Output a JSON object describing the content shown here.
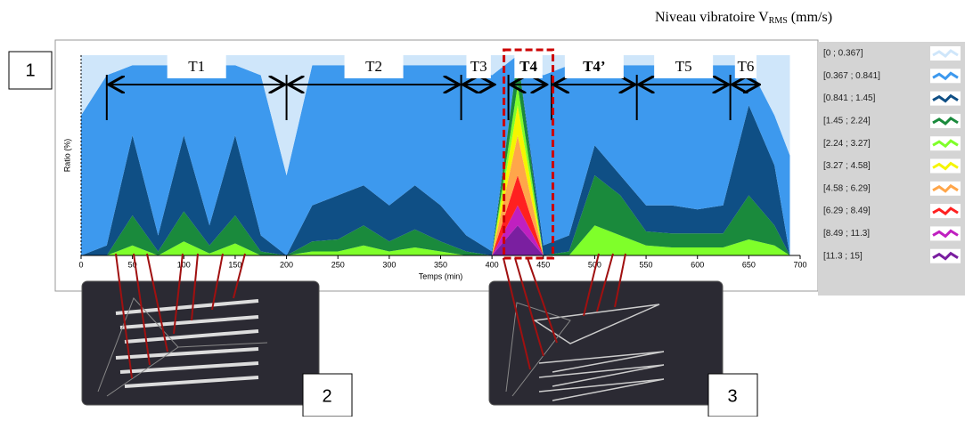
{
  "chart_data": {
    "type": "stacked-area",
    "legend_title": {
      "text": "Niveau vibratoire V",
      "subscript": "RMS",
      "unit": "(mm/s)"
    },
    "xlabel": "Temps (min)",
    "ylabel": "Ratio (%)",
    "xlim": [
      0,
      700
    ],
    "xticks": [
      0,
      50,
      100,
      150,
      200,
      250,
      300,
      350,
      400,
      450,
      500,
      550,
      600,
      650,
      700
    ],
    "ylim": [
      0,
      100
    ],
    "x": [
      0,
      25,
      50,
      75,
      100,
      125,
      150,
      175,
      200,
      225,
      250,
      275,
      300,
      325,
      350,
      375,
      400,
      425,
      450,
      475,
      500,
      525,
      550,
      575,
      600,
      625,
      650,
      675,
      690
    ],
    "series": [
      {
        "name": "[0 ; 0.367]",
        "color": "#cfe6fa",
        "values": [
          30,
          10,
          5,
          5,
          5,
          5,
          5,
          10,
          60,
          5,
          5,
          5,
          5,
          5,
          5,
          5,
          10,
          0,
          10,
          5,
          5,
          5,
          5,
          5,
          5,
          5,
          5,
          30,
          50
        ]
      },
      {
        "name": "[0.367 ; 0.841]",
        "color": "#3d99ee",
        "values": [
          70,
          85,
          35,
          85,
          35,
          80,
          35,
          80,
          40,
          70,
          65,
          60,
          70,
          60,
          70,
          85,
          88,
          0,
          85,
          85,
          40,
          55,
          70,
          70,
          72,
          70,
          20,
          25,
          50
        ]
      },
      {
        "name": "[0.841 ; 1.45]",
        "color": "#0f4f85",
        "values": [
          0,
          5,
          40,
          8,
          38,
          10,
          40,
          8,
          0,
          18,
          22,
          20,
          18,
          22,
          18,
          8,
          2,
          0,
          5,
          8,
          15,
          10,
          13,
          14,
          12,
          14,
          45,
          30,
          0
        ]
      },
      {
        "name": "[1.45 ; 2.24]",
        "color": "#1a8a3c",
        "values": [
          0,
          0,
          15,
          2,
          15,
          4,
          14,
          2,
          0,
          5,
          6,
          10,
          5,
          9,
          5,
          2,
          0,
          15,
          0,
          2,
          25,
          20,
          7,
          7,
          7,
          7,
          22,
          10,
          0
        ]
      },
      {
        "name": "[2.24 ; 3.27]",
        "color": "#7fff2a",
        "values": [
          0,
          0,
          5,
          0,
          7,
          1,
          6,
          0,
          0,
          2,
          2,
          5,
          2,
          4,
          2,
          0,
          0,
          10,
          0,
          0,
          15,
          10,
          5,
          4,
          4,
          4,
          8,
          5,
          0
        ]
      },
      {
        "name": "[3.27 ; 4.58]",
        "color": "#f5f500",
        "values": [
          0,
          0,
          0,
          0,
          0,
          0,
          0,
          0,
          0,
          0,
          0,
          0,
          0,
          0,
          0,
          0,
          0,
          15,
          0,
          0,
          0,
          0,
          0,
          0,
          0,
          0,
          0,
          0,
          0
        ]
      },
      {
        "name": "[4.58 ; 6.29]",
        "color": "#ffa64a",
        "values": [
          0,
          0,
          0,
          0,
          0,
          0,
          0,
          0,
          0,
          0,
          0,
          0,
          0,
          0,
          0,
          0,
          0,
          20,
          0,
          0,
          0,
          0,
          0,
          0,
          0,
          0,
          0,
          0,
          0
        ]
      },
      {
        "name": "[6.29 ; 8.49]",
        "color": "#ff2020",
        "values": [
          0,
          0,
          0,
          0,
          0,
          0,
          0,
          0,
          0,
          0,
          0,
          0,
          0,
          0,
          0,
          0,
          0,
          15,
          0,
          0,
          0,
          0,
          0,
          0,
          0,
          0,
          0,
          0,
          0
        ]
      },
      {
        "name": "[8.49 ; 11.3]",
        "color": "#c020c0",
        "values": [
          0,
          0,
          0,
          0,
          0,
          0,
          0,
          0,
          0,
          0,
          0,
          0,
          0,
          0,
          0,
          0,
          0,
          10,
          0,
          0,
          0,
          0,
          0,
          0,
          0,
          0,
          0,
          0,
          0
        ]
      },
      {
        "name": "[11.3 ; 15]",
        "color": "#7a1fa0",
        "values": [
          0,
          0,
          0,
          0,
          0,
          0,
          0,
          0,
          0,
          0,
          0,
          0,
          0,
          0,
          0,
          0,
          0,
          15,
          0,
          0,
          0,
          0,
          0,
          0,
          0,
          0,
          0,
          0,
          0
        ]
      }
    ],
    "phases": [
      {
        "label": "T1",
        "start": 25,
        "end": 200
      },
      {
        "label": "T2",
        "start": 200,
        "end": 370
      },
      {
        "label": "T3",
        "start": 370,
        "end": 404
      },
      {
        "label": "T4",
        "start": 416,
        "end": 455
      },
      {
        "label": "T4’",
        "start": 458,
        "end": 541
      },
      {
        "label": "T5",
        "start": 541,
        "end": 632
      },
      {
        "label": "T6",
        "start": 632,
        "end": 662
      }
    ],
    "panels": [
      "1",
      "2",
      "3"
    ]
  }
}
